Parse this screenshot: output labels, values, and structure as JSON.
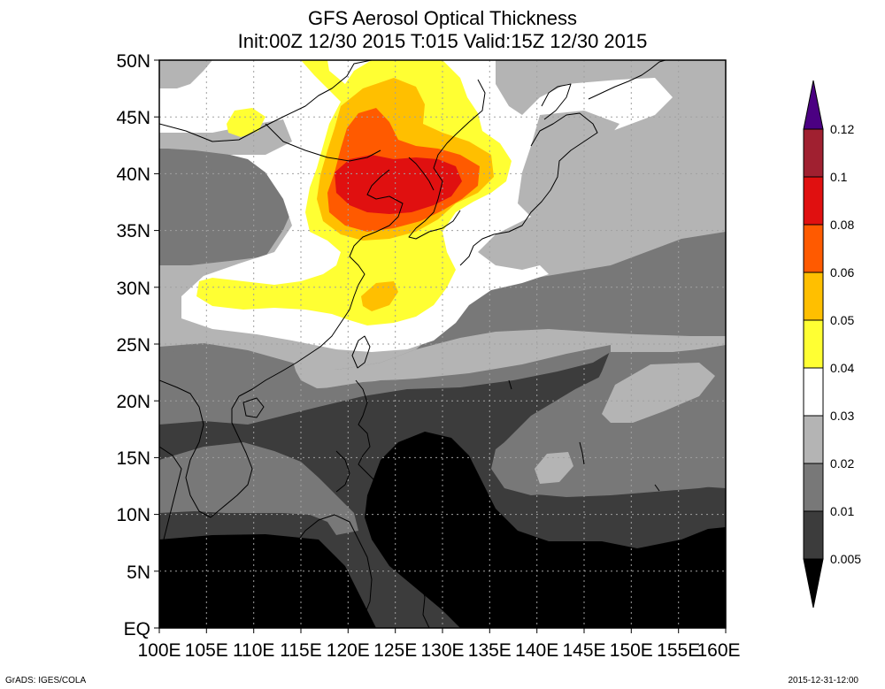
{
  "title": "GFS Aerosol Optical Thickness",
  "subtitle": "Init:00Z 12/30 2015 T:015 Valid:15Z 12/30 2015",
  "credit": "GrADS: IGES/COLA",
  "timestamp": "2015-12-31-12:00",
  "map": {
    "lat_labels": [
      "50N",
      "45N",
      "40N",
      "35N",
      "30N",
      "25N",
      "20N",
      "15N",
      "10N",
      "5N",
      "EQ"
    ],
    "lon_labels": [
      "100E",
      "105E",
      "110E",
      "115E",
      "120E",
      "125E",
      "130E",
      "135E",
      "140E",
      "145E",
      "150E",
      "155E",
      "160E"
    ],
    "lat_range": [
      0,
      50
    ],
    "lon_range": [
      100,
      160
    ],
    "grid": true,
    "grid_style": "dotted"
  },
  "colorbar": {
    "levels": [
      "0.005",
      "0.01",
      "0.02",
      "0.03",
      "0.04",
      "0.05",
      "0.06",
      "0.08",
      "0.1",
      "0.12"
    ],
    "colors": [
      "#000000",
      "#3c3c3c",
      "#787878",
      "#b4b4b4",
      "#ffffff",
      "#ffff33",
      "#ffbf00",
      "#ff5a00",
      "#e01010",
      "#a02030",
      "#4b0082"
    ],
    "extend": "both",
    "orientation": "vertical",
    "placement": "right"
  },
  "colors": {
    "land_outline": "#000000",
    "grid": "#a0a0a0"
  }
}
